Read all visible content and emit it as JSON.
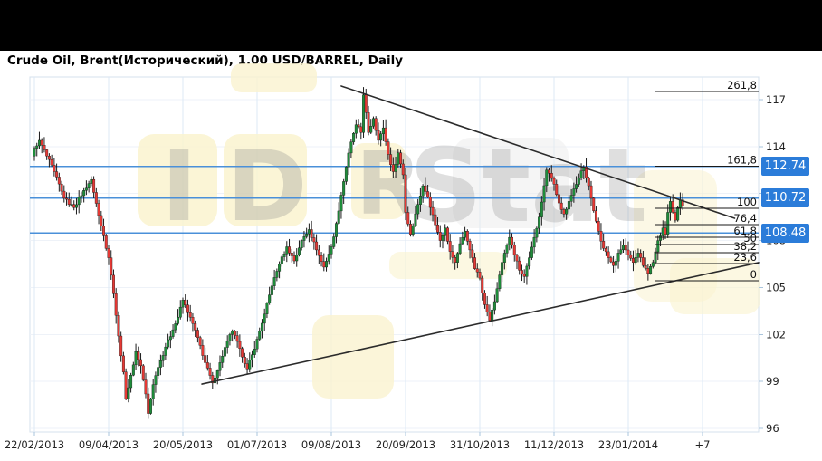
{
  "header": {
    "title": "Crude Oil, Brent(Исторический), 1.00 USD/BARREL, Daily"
  },
  "watermark": {
    "letters": [
      "I",
      "D",
      "R"
    ],
    "suffix": "Stat"
  },
  "chart_data": {
    "type": "candlestick",
    "title": "Crude Oil, Brent (Historical), 1.00 USD/BARREL, Daily",
    "timeframe": "Daily",
    "x_ticks": [
      {
        "label": "22/02/2013",
        "i": 0
      },
      {
        "label": "09/04/2013",
        "i": 30
      },
      {
        "label": "20/05/2013",
        "i": 60
      },
      {
        "label": "01/07/2013",
        "i": 90
      },
      {
        "label": "09/08/2013",
        "i": 120
      },
      {
        "label": "20/09/2013",
        "i": 150
      },
      {
        "label": "31/10/2013",
        "i": 180
      },
      {
        "label": "11/12/2013",
        "i": 210
      },
      {
        "label": "23/01/2014",
        "i": 240
      },
      {
        "label": "+7",
        "i": 270
      }
    ],
    "y_ticks": [
      117,
      114,
      111,
      108,
      105,
      102,
      99,
      96
    ],
    "ylim": [
      95.77,
      118.45
    ],
    "grid": true,
    "price_lines": [
      {
        "price": 112.74,
        "label": "112.74"
      },
      {
        "price": 110.72,
        "label": "110.72"
      },
      {
        "price": 108.48,
        "label": "108.48"
      }
    ],
    "fib_start_i": 250.6,
    "fib_levels": [
      {
        "label": "261,8",
        "price": 117.52
      },
      {
        "label": "161,8",
        "price": 112.75
      },
      {
        "label": "100",
        "price": 110.06
      },
      {
        "label": "76,4",
        "price": 109.02
      },
      {
        "label": "61,8",
        "price": 108.21
      },
      {
        "label": "50",
        "price": 107.75
      },
      {
        "label": "38,2",
        "price": 107.22
      },
      {
        "label": "23,6",
        "price": 106.53
      },
      {
        "label": "0",
        "price": 105.43
      }
    ],
    "trendlines": [
      {
        "i1": 124.0,
        "p1": 117.87,
        "i2": 283.0,
        "p2": 109.42
      },
      {
        "i1": 67.7,
        "p1": 98.83,
        "i2": 292.7,
        "p2": 106.59
      }
    ],
    "candles": {
      "count": 263,
      "first_open": 113.4,
      "anchors": [
        [
          0,
          113.9
        ],
        [
          2,
          114.4
        ],
        [
          5,
          113.4
        ],
        [
          8,
          112.4
        ],
        [
          12,
          110.7
        ],
        [
          16,
          110.1
        ],
        [
          20,
          111.2
        ],
        [
          23,
          111.9
        ],
        [
          26,
          109.6
        ],
        [
          28,
          108.3
        ],
        [
          30,
          106.9
        ],
        [
          32,
          104.6
        ],
        [
          34,
          101.9
        ],
        [
          36,
          99.6
        ],
        [
          37,
          97.9
        ],
        [
          39,
          99.4
        ],
        [
          41,
          100.9
        ],
        [
          43,
          100.0
        ],
        [
          45,
          98.2
        ],
        [
          46,
          96.95
        ],
        [
          48,
          98.8
        ],
        [
          50,
          99.9
        ],
        [
          53,
          101.2
        ],
        [
          56,
          102.3
        ],
        [
          58,
          103.1
        ],
        [
          60,
          104.2
        ],
        [
          63,
          103.1
        ],
        [
          66,
          101.8
        ],
        [
          69,
          100.2
        ],
        [
          72,
          98.9
        ],
        [
          75,
          100.2
        ],
        [
          78,
          101.6
        ],
        [
          80,
          102.2
        ],
        [
          83,
          101.1
        ],
        [
          86,
          99.8
        ],
        [
          88,
          100.7
        ],
        [
          90,
          101.7
        ],
        [
          93,
          103.3
        ],
        [
          96,
          105.1
        ],
        [
          99,
          106.5
        ],
        [
          102,
          107.6
        ],
        [
          105,
          106.7
        ],
        [
          108,
          108.0
        ],
        [
          111,
          108.7
        ],
        [
          114,
          107.4
        ],
        [
          117,
          106.3
        ],
        [
          120,
          107.6
        ],
        [
          122,
          109.1
        ],
        [
          124,
          110.9
        ],
        [
          126,
          112.7
        ],
        [
          128,
          114.3
        ],
        [
          130,
          115.4
        ],
        [
          132,
          114.9
        ],
        [
          133,
          117.3
        ],
        [
          135,
          114.9
        ],
        [
          137,
          115.8
        ],
        [
          139,
          114.4
        ],
        [
          141,
          115.2
        ],
        [
          143,
          113.5
        ],
        [
          145,
          112.4
        ],
        [
          147,
          113.6
        ],
        [
          149,
          112.2
        ],
        [
          150,
          109.8
        ],
        [
          152,
          108.4
        ],
        [
          155,
          110.3
        ],
        [
          157,
          111.5
        ],
        [
          159,
          110.8
        ],
        [
          162,
          109.0
        ],
        [
          164,
          108.0
        ],
        [
          166,
          108.8
        ],
        [
          168,
          107.3
        ],
        [
          170,
          106.6
        ],
        [
          172,
          107.8
        ],
        [
          174,
          108.6
        ],
        [
          176,
          107.4
        ],
        [
          178,
          106.2
        ],
        [
          180,
          105.6
        ],
        [
          182,
          103.9
        ],
        [
          184,
          102.9
        ],
        [
          186,
          104.1
        ],
        [
          188,
          105.8
        ],
        [
          190,
          107.2
        ],
        [
          192,
          108.2
        ],
        [
          194,
          107.1
        ],
        [
          196,
          106.1
        ],
        [
          198,
          105.7
        ],
        [
          200,
          106.9
        ],
        [
          202,
          108.2
        ],
        [
          204,
          109.5
        ],
        [
          207,
          112.5
        ],
        [
          210,
          111.6
        ],
        [
          212,
          110.4
        ],
        [
          214,
          109.7
        ],
        [
          216,
          110.5
        ],
        [
          218,
          111.3
        ],
        [
          220,
          112.0
        ],
        [
          222,
          112.7
        ],
        [
          224,
          111.5
        ],
        [
          226,
          109.9
        ],
        [
          228,
          108.6
        ],
        [
          230,
          107.5
        ],
        [
          232,
          106.9
        ],
        [
          234,
          106.4
        ],
        [
          236,
          107.2
        ],
        [
          238,
          107.7
        ],
        [
          240,
          107.1
        ],
        [
          242,
          106.6
        ],
        [
          244,
          107.2
        ],
        [
          246,
          106.4
        ],
        [
          248,
          105.9
        ],
        [
          250,
          106.6
        ],
        [
          252,
          108.0
        ],
        [
          254,
          108.8
        ],
        [
          255,
          108.4
        ],
        [
          256,
          109.8
        ],
        [
          257,
          110.5
        ],
        [
          258,
          109.8
        ],
        [
          259,
          109.3
        ],
        [
          260,
          110.1
        ],
        [
          261,
          110.6
        ],
        [
          262,
          110.2
        ]
      ]
    },
    "colors": {
      "up": "#1e8c3a",
      "down": "#e53935",
      "wick": "#1a1a1a",
      "grid_v": "#dce9f6",
      "grid_h": "#eef2f8",
      "blue_line": "#4a90d9",
      "badge": "#2b7cd9",
      "trend": "#2b2b2b",
      "fib": "#1a1a1a",
      "axis_text": "#222222",
      "tick": "#a9c4dc",
      "watermark_tile": "#faf3cf",
      "watermark_text": "#8c8c8c"
    }
  }
}
